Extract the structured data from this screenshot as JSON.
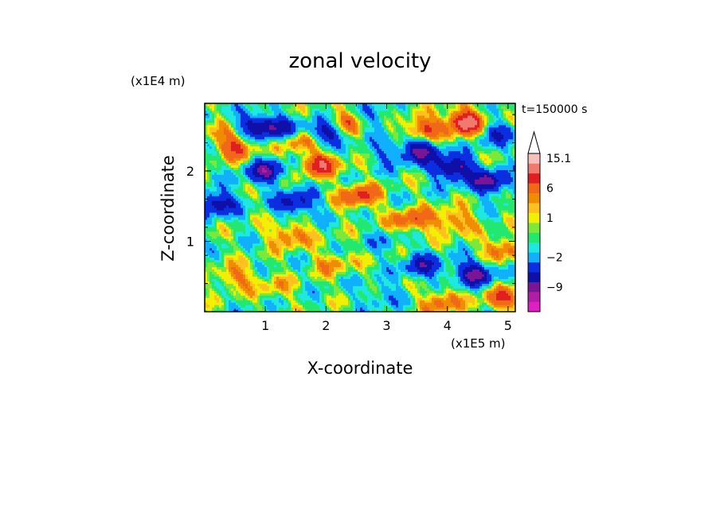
{
  "chart_data": {
    "type": "heatmap",
    "title": "zonal velocity",
    "xlabel": "X-coordinate",
    "ylabel": "Z-coordinate",
    "x_unit": "(x1E5 m)",
    "y_unit": "(x1E4 m)",
    "time_label": "t=150000 s",
    "xlim": [
      0,
      5.12
    ],
    "ylim": [
      0,
      2.96
    ],
    "x_ticks": [
      {
        "value": 1,
        "label": "1"
      },
      {
        "value": 2,
        "label": "2"
      },
      {
        "value": 3,
        "label": "3"
      },
      {
        "value": 4,
        "label": "4"
      },
      {
        "value": 5,
        "label": "5"
      }
    ],
    "y_ticks": [
      {
        "value": 1,
        "label": "1"
      },
      {
        "value": 2,
        "label": "2"
      }
    ],
    "colorbar": {
      "labels": [
        "15.1",
        "6",
        "1",
        "−2",
        "−9"
      ],
      "levels": [
        {
          "color": "#e020c0"
        },
        {
          "color": "#b01ea8"
        },
        {
          "color": "#7a1696"
        },
        {
          "color": "#1010a8"
        },
        {
          "color": "#0b2ee0"
        },
        {
          "color": "#10b0ff"
        },
        {
          "color": "#1ee8e0"
        },
        {
          "color": "#22e870"
        },
        {
          "color": "#7ee83a"
        },
        {
          "color": "#f0f000"
        },
        {
          "color": "#ffc020"
        },
        {
          "color": "#f08c00"
        },
        {
          "color": "#f06818"
        },
        {
          "color": "#e02020"
        },
        {
          "color": "#f07a70"
        },
        {
          "color": "#f8c0bc"
        }
      ]
    },
    "field_features": [
      {
        "x": 0.5,
        "z": 2.35,
        "v": 8
      },
      {
        "x": 0.85,
        "z": 2.65,
        "v": -8
      },
      {
        "x": 1.25,
        "z": 2.6,
        "v": -7
      },
      {
        "x": 1.55,
        "z": 2.45,
        "v": 6
      },
      {
        "x": 1.0,
        "z": 2.0,
        "v": -9
      },
      {
        "x": 1.9,
        "z": 2.1,
        "v": 9
      },
      {
        "x": 2.35,
        "z": 2.7,
        "v": 7
      },
      {
        "x": 2.0,
        "z": 2.55,
        "v": -9
      },
      {
        "x": 2.75,
        "z": 2.75,
        "v": -4
      },
      {
        "x": 3.0,
        "z": 2.25,
        "v": -3
      },
      {
        "x": 2.55,
        "z": 1.65,
        "v": 8
      },
      {
        "x": 3.6,
        "z": 2.6,
        "v": 8
      },
      {
        "x": 3.55,
        "z": 2.3,
        "v": -10
      },
      {
        "x": 4.3,
        "z": 2.7,
        "v": 13
      },
      {
        "x": 4.1,
        "z": 2.05,
        "v": -11
      },
      {
        "x": 4.7,
        "z": 1.85,
        "v": -10
      },
      {
        "x": 4.8,
        "z": 2.55,
        "v": -6
      },
      {
        "x": 3.4,
        "z": 1.3,
        "v": 7
      },
      {
        "x": 4.1,
        "z": 1.3,
        "v": 6
      },
      {
        "x": 1.5,
        "z": 1.55,
        "v": -8
      },
      {
        "x": 0.2,
        "z": 1.55,
        "v": -9
      },
      {
        "x": 3.6,
        "z": 0.65,
        "v": -7
      },
      {
        "x": 4.45,
        "z": 0.55,
        "v": -10
      },
      {
        "x": 0.5,
        "z": 0.5,
        "v": 5
      },
      {
        "x": 2.1,
        "z": 0.7,
        "v": 4
      },
      {
        "x": 2.75,
        "z": 0.55,
        "v": 0
      },
      {
        "x": 1.15,
        "z": 0.35,
        "v": 3
      },
      {
        "x": 4.9,
        "z": 0.9,
        "v": 6
      },
      {
        "x": 3.0,
        "z": 1.0,
        "v": -2
      },
      {
        "x": 1.7,
        "z": 0.9,
        "v": 0
      },
      {
        "x": 0.2,
        "z": 2.6,
        "v": 2
      },
      {
        "x": 0.6,
        "z": 1.0,
        "v": 0
      },
      {
        "x": 3.9,
        "z": 0.15,
        "v": 6
      },
      {
        "x": 2.9,
        "z": 0.25,
        "v": -3
      },
      {
        "x": 4.9,
        "z": 0.2,
        "v": 7
      },
      {
        "x": 1.4,
        "z": 1.1,
        "v": 6
      }
    ]
  }
}
